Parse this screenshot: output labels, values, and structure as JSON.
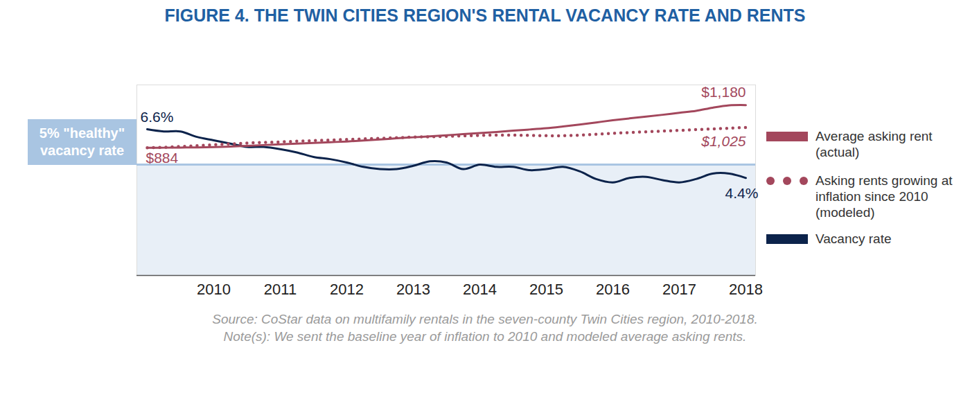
{
  "chart_data": {
    "type": "line",
    "title": "FIGURE 4. THE TWIN CITIES REGION'S RENTAL VACANCY RATE AND RENTS",
    "notes": [
      "Source: CoStar data on multifamily rentals in the seven-county Twin Cities region, 2010-2018.",
      "Note(s): We sent the baseline year of inflation to 2010 and modeled average asking rents."
    ],
    "categories": [
      null,
      null,
      null,
      null,
      "2010",
      null,
      null,
      null,
      "2011",
      null,
      null,
      null,
      "2012",
      null,
      null,
      null,
      "2013",
      null,
      null,
      null,
      "2014",
      null,
      null,
      null,
      "2015",
      null,
      null,
      null,
      "2016",
      null,
      null,
      null,
      "2017",
      null,
      null,
      null,
      "2018"
    ],
    "series": [
      {
        "name": "Average asking rent (actual)",
        "color": "#a3475c",
        "axis": "y2",
        "line_style": "solid",
        "values": [
          884,
          885,
          886,
          887,
          889,
          893,
          898,
          903,
          908,
          913,
          918,
          923,
          928,
          935,
          942,
          950,
          957,
          964,
          971,
          979,
          986,
          994,
          1003,
          1011,
          1020,
          1032,
          1045,
          1060,
          1075,
          1088,
          1100,
          1113,
          1127,
          1140,
          1162,
          1178,
          1180
        ],
        "value_labels": [
          "$884",
          null,
          null,
          null,
          null,
          null,
          null,
          null,
          null,
          null,
          null,
          null,
          null,
          null,
          null,
          null,
          null,
          null,
          null,
          null,
          null,
          null,
          null,
          null,
          null,
          null,
          null,
          null,
          null,
          null,
          null,
          null,
          null,
          null,
          null,
          null,
          "$1,180"
        ]
      },
      {
        "name": "Asking rents growing at inflation since 2010 (modeled)",
        "color": "#a3475c",
        "axis": "y2",
        "line_style": "dotted",
        "values": [
          884,
          888,
          893,
          899,
          905,
          911,
          917,
          921,
          925,
          930,
          934,
          938,
          942,
          946,
          950,
          954,
          958,
          961,
          964,
          967,
          970,
          972,
          972,
          970,
          968,
          968,
          972,
          978,
          985,
          990,
          995,
          1000,
          1005,
          1010,
          1015,
          1020,
          1025
        ],
        "value_labels": [
          null,
          null,
          null,
          null,
          null,
          null,
          null,
          null,
          null,
          null,
          null,
          null,
          null,
          null,
          null,
          null,
          null,
          null,
          null,
          null,
          null,
          null,
          null,
          null,
          null,
          null,
          null,
          null,
          null,
          null,
          null,
          null,
          null,
          null,
          null,
          null,
          "$1,025"
        ]
      },
      {
        "name": "Vacancy rate",
        "color": "#0c234b",
        "line_style": "solid",
        "values": [
          6.6,
          6.5,
          6.5,
          6.25,
          6.1,
          5.95,
          5.8,
          5.8,
          5.7,
          5.55,
          5.35,
          5.25,
          5.1,
          4.9,
          4.8,
          4.8,
          4.95,
          5.15,
          5.1,
          4.8,
          5,
          4.9,
          4.9,
          4.75,
          4.8,
          4.9,
          4.7,
          4.35,
          4.2,
          4.4,
          4.45,
          4.3,
          4.2,
          4.35,
          4.6,
          4.6,
          4.4
        ],
        "value_labels": [
          "6.6%",
          null,
          null,
          null,
          null,
          null,
          null,
          null,
          null,
          null,
          null,
          null,
          null,
          null,
          null,
          null,
          null,
          null,
          null,
          null,
          null,
          null,
          null,
          null,
          null,
          null,
          null,
          null,
          null,
          null,
          null,
          null,
          null,
          null,
          null,
          null,
          "4.4%"
        ]
      }
    ],
    "annotations": [
      {
        "text": "5% \"healthy\" vacancy rate",
        "y": 5
      }
    ],
    "ylim": [
      0,
      8.6
    ],
    "yticks": [],
    "y2lim": [
      0,
      1320
    ],
    "y2ticks": [],
    "tick_labels": "x",
    "legend": "right"
  }
}
